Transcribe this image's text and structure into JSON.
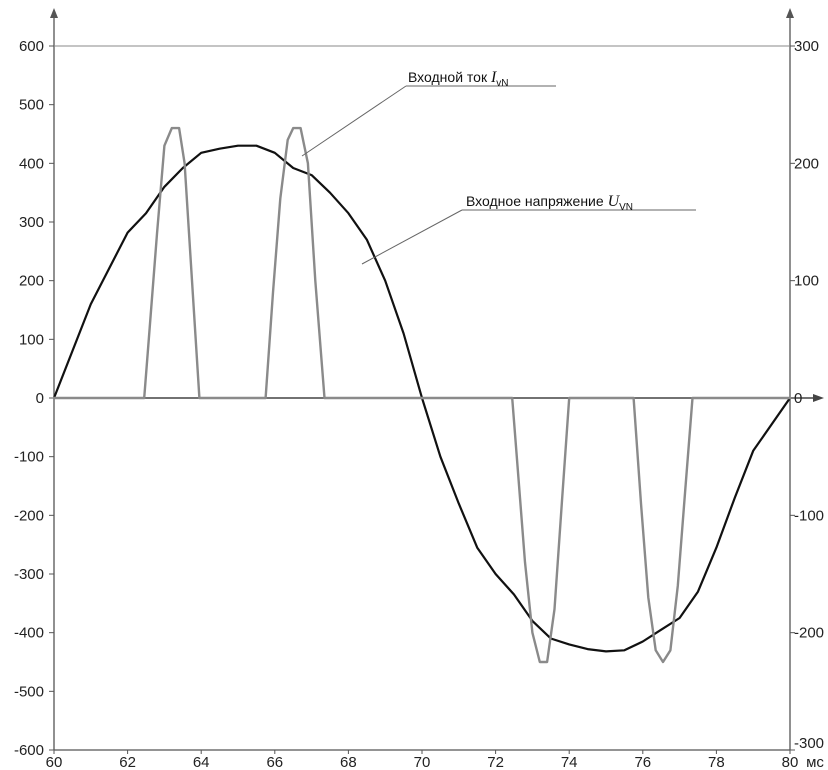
{
  "chart_data": {
    "type": "line",
    "x_unit": "мс",
    "xlim": [
      60,
      80
    ],
    "x_ticks": [
      60,
      62,
      64,
      66,
      68,
      70,
      72,
      74,
      76,
      78,
      80
    ],
    "ylim_left": [
      -600,
      600
    ],
    "y_ticks_left": [
      600,
      500,
      400,
      300,
      200,
      100,
      0,
      -100,
      -200,
      -300,
      -400,
      -500,
      -600
    ],
    "ylim_right": [
      -300,
      300
    ],
    "y_ticks_right": [
      300,
      200,
      100,
      0,
      -100,
      -200,
      -300
    ],
    "grid": false,
    "series": [
      {
        "name": "Входное напряжение U_VN",
        "axis": "left",
        "color": "#111111",
        "points": [
          [
            60,
            0
          ],
          [
            61,
            160
          ],
          [
            62,
            282
          ],
          [
            62.5,
            315
          ],
          [
            63,
            360
          ],
          [
            63.5,
            392
          ],
          [
            64,
            418
          ],
          [
            64.5,
            425
          ],
          [
            65,
            430
          ],
          [
            65.5,
            430
          ],
          [
            66,
            418
          ],
          [
            66.5,
            392
          ],
          [
            67,
            380
          ],
          [
            67.5,
            350
          ],
          [
            68,
            315
          ],
          [
            68.5,
            270
          ],
          [
            69,
            200
          ],
          [
            69.5,
            110
          ],
          [
            70,
            0
          ],
          [
            70.5,
            -100
          ],
          [
            71,
            -180
          ],
          [
            71.5,
            -255
          ],
          [
            72,
            -300
          ],
          [
            72.5,
            -335
          ],
          [
            73,
            -380
          ],
          [
            73.5,
            -410
          ],
          [
            74,
            -420
          ],
          [
            74.5,
            -428
          ],
          [
            75,
            -432
          ],
          [
            75.5,
            -430
          ],
          [
            76,
            -415
          ],
          [
            76.5,
            -395
          ],
          [
            77,
            -375
          ],
          [
            77.5,
            -330
          ],
          [
            78,
            -255
          ],
          [
            78.5,
            -170
          ],
          [
            79,
            -90
          ],
          [
            80,
            0
          ]
        ]
      },
      {
        "name": "Входной ток I_vN",
        "axis": "right",
        "color": "#8a8a8a",
        "points": [
          [
            60,
            0
          ],
          [
            62.45,
            0
          ],
          [
            62.6,
            60
          ],
          [
            62.8,
            140
          ],
          [
            63.0,
            215
          ],
          [
            63.2,
            230
          ],
          [
            63.4,
            230
          ],
          [
            63.55,
            200
          ],
          [
            63.75,
            100
          ],
          [
            63.95,
            0
          ],
          [
            65.75,
            0
          ],
          [
            65.95,
            90
          ],
          [
            66.15,
            170
          ],
          [
            66.35,
            220
          ],
          [
            66.5,
            230
          ],
          [
            66.7,
            230
          ],
          [
            66.9,
            200
          ],
          [
            67.1,
            100
          ],
          [
            67.35,
            0
          ],
          [
            72.45,
            0
          ],
          [
            72.6,
            -60
          ],
          [
            72.8,
            -140
          ],
          [
            73.0,
            -200
          ],
          [
            73.2,
            -225
          ],
          [
            73.4,
            -225
          ],
          [
            73.6,
            -180
          ],
          [
            73.8,
            -90
          ],
          [
            74.0,
            0
          ],
          [
            75.75,
            0
          ],
          [
            75.95,
            -90
          ],
          [
            76.15,
            -170
          ],
          [
            76.35,
            -215
          ],
          [
            76.55,
            -225
          ],
          [
            76.75,
            -215
          ],
          [
            76.95,
            -160
          ],
          [
            77.15,
            -80
          ],
          [
            77.35,
            0
          ],
          [
            80,
            0
          ]
        ]
      }
    ],
    "annotations": [
      {
        "text": "Входной ток ",
        "var": "I",
        "sub": "vN",
        "target_x": 66.6,
        "target_y_right": 210
      },
      {
        "text": "Входное напряжение ",
        "var": "U",
        "sub": "VN",
        "target_x": 68.6,
        "target_y_left": 230
      }
    ]
  }
}
